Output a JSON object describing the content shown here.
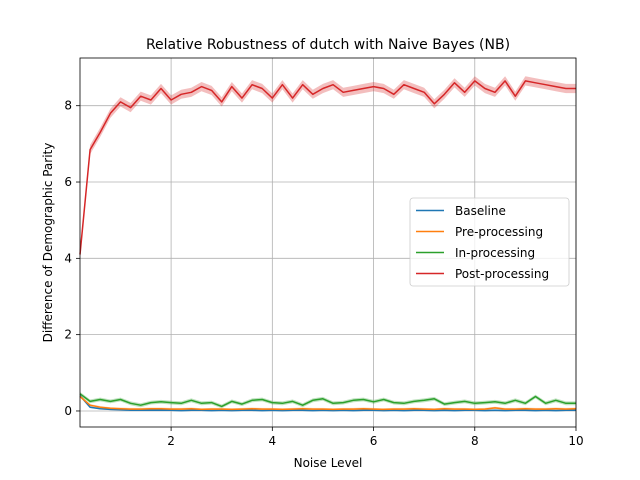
{
  "chart_data": {
    "type": "line",
    "title": "Relative Robustness of dutch with Naive Bayes (NB)",
    "xlabel": "Noise Level",
    "ylabel": "Difference of Demographic Parity",
    "xlim": [
      0.2,
      10.0
    ],
    "ylim": [
      -0.42,
      9.25
    ],
    "xticks": [
      2,
      4,
      6,
      8,
      10
    ],
    "yticks": [
      0,
      2,
      4,
      6,
      8
    ],
    "xtick_labels": [
      "2",
      "4",
      "6",
      "8",
      "10"
    ],
    "ytick_labels": [
      "0",
      "2",
      "4",
      "6",
      "8"
    ],
    "grid": true,
    "legend_position": "right",
    "x": [
      0.2,
      0.4,
      0.6,
      0.8,
      1.0,
      1.2,
      1.4,
      1.6,
      1.8,
      2.0,
      2.2,
      2.4,
      2.6,
      2.8,
      3.0,
      3.2,
      3.4,
      3.6,
      3.8,
      4.0,
      4.2,
      4.4,
      4.6,
      4.8,
      5.0,
      5.2,
      5.4,
      5.6,
      5.8,
      6.0,
      6.2,
      6.4,
      6.6,
      6.8,
      7.0,
      7.2,
      7.4,
      7.6,
      7.8,
      8.0,
      8.2,
      8.4,
      8.6,
      8.8,
      9.0,
      9.2,
      9.4,
      9.6,
      9.8,
      10.0
    ],
    "series": [
      {
        "name": "Baseline",
        "color": "#1f77b4",
        "band": 0.02,
        "values": [
          0.4,
          0.1,
          0.06,
          0.04,
          0.03,
          0.02,
          0.02,
          0.02,
          0.02,
          0.02,
          0.01,
          0.02,
          0.02,
          0.01,
          0.02,
          0.01,
          0.02,
          0.02,
          0.01,
          0.02,
          0.01,
          0.02,
          0.02,
          0.01,
          0.02,
          0.01,
          0.02,
          0.01,
          0.02,
          0.02,
          0.01,
          0.02,
          0.01,
          0.02,
          0.02,
          0.01,
          0.02,
          0.01,
          0.02,
          0.02,
          0.01,
          0.02,
          0.01,
          0.02,
          0.02,
          0.01,
          0.02,
          0.01,
          0.02,
          0.02
        ]
      },
      {
        "name": "Pre-processing",
        "color": "#ff7f0e",
        "band": 0.03,
        "values": [
          0.38,
          0.15,
          0.1,
          0.07,
          0.06,
          0.05,
          0.05,
          0.06,
          0.06,
          0.05,
          0.05,
          0.06,
          0.04,
          0.05,
          0.05,
          0.04,
          0.05,
          0.06,
          0.05,
          0.05,
          0.04,
          0.05,
          0.06,
          0.05,
          0.05,
          0.04,
          0.05,
          0.05,
          0.06,
          0.05,
          0.04,
          0.05,
          0.05,
          0.06,
          0.05,
          0.04,
          0.06,
          0.05,
          0.05,
          0.04,
          0.05,
          0.08,
          0.05,
          0.05,
          0.06,
          0.05,
          0.05,
          0.06,
          0.05,
          0.06
        ]
      },
      {
        "name": "In-processing",
        "color": "#2ca02c",
        "band": 0.05,
        "values": [
          0.45,
          0.25,
          0.3,
          0.25,
          0.3,
          0.2,
          0.15,
          0.22,
          0.24,
          0.22,
          0.2,
          0.28,
          0.2,
          0.22,
          0.12,
          0.25,
          0.18,
          0.28,
          0.3,
          0.22,
          0.2,
          0.25,
          0.15,
          0.28,
          0.32,
          0.2,
          0.22,
          0.28,
          0.3,
          0.24,
          0.3,
          0.22,
          0.2,
          0.25,
          0.28,
          0.32,
          0.18,
          0.22,
          0.25,
          0.2,
          0.22,
          0.24,
          0.2,
          0.28,
          0.2,
          0.38,
          0.2,
          0.28,
          0.2,
          0.2
        ]
      },
      {
        "name": "Post-processing",
        "color": "#d62728",
        "band": 0.12,
        "values": [
          4.1,
          6.85,
          7.3,
          7.8,
          8.1,
          7.95,
          8.25,
          8.15,
          8.45,
          8.15,
          8.3,
          8.35,
          8.5,
          8.4,
          8.1,
          8.5,
          8.2,
          8.55,
          8.45,
          8.2,
          8.55,
          8.2,
          8.55,
          8.3,
          8.45,
          8.55,
          8.35,
          8.4,
          8.45,
          8.5,
          8.45,
          8.3,
          8.55,
          8.45,
          8.35,
          8.05,
          8.3,
          8.6,
          8.35,
          8.65,
          8.45,
          8.35,
          8.65,
          8.25,
          8.65,
          8.6,
          8.55,
          8.5,
          8.45,
          8.45
        ]
      }
    ]
  }
}
